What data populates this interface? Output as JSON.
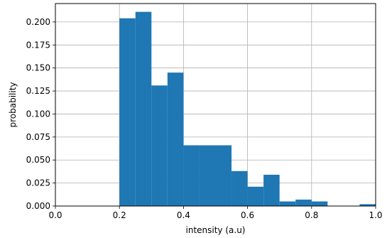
{
  "chart_data": {
    "type": "bar",
    "title": "",
    "xlabel": "intensity (a.u)",
    "ylabel": "probability",
    "xlim": [
      0.0,
      1.0
    ],
    "ylim": [
      0.0,
      0.22
    ],
    "xticks": [
      "0.0",
      "0.2",
      "0.4",
      "0.6",
      "0.8",
      "1.0"
    ],
    "yticks": [
      "0.000",
      "0.025",
      "0.050",
      "0.075",
      "0.100",
      "0.125",
      "0.150",
      "0.175",
      "0.200"
    ],
    "grid": true,
    "bar_color": "#1f77b4",
    "bins": [
      {
        "x0": 0.2,
        "x1": 0.25,
        "value": 0.204
      },
      {
        "x0": 0.25,
        "x1": 0.3,
        "value": 0.211
      },
      {
        "x0": 0.3,
        "x1": 0.35,
        "value": 0.131
      },
      {
        "x0": 0.35,
        "x1": 0.4,
        "value": 0.145
      },
      {
        "x0": 0.4,
        "x1": 0.45,
        "value": 0.066
      },
      {
        "x0": 0.45,
        "x1": 0.5,
        "value": 0.066
      },
      {
        "x0": 0.5,
        "x1": 0.55,
        "value": 0.066
      },
      {
        "x0": 0.55,
        "x1": 0.6,
        "value": 0.038
      },
      {
        "x0": 0.6,
        "x1": 0.65,
        "value": 0.021
      },
      {
        "x0": 0.65,
        "x1": 0.7,
        "value": 0.034
      },
      {
        "x0": 0.7,
        "x1": 0.75,
        "value": 0.005
      },
      {
        "x0": 0.75,
        "x1": 0.8,
        "value": 0.007
      },
      {
        "x0": 0.8,
        "x1": 0.85,
        "value": 0.005
      },
      {
        "x0": 0.85,
        "x1": 0.9,
        "value": 0.0
      },
      {
        "x0": 0.9,
        "x1": 0.95,
        "value": 0.0
      },
      {
        "x0": 0.95,
        "x1": 1.0,
        "value": 0.002
      }
    ]
  }
}
